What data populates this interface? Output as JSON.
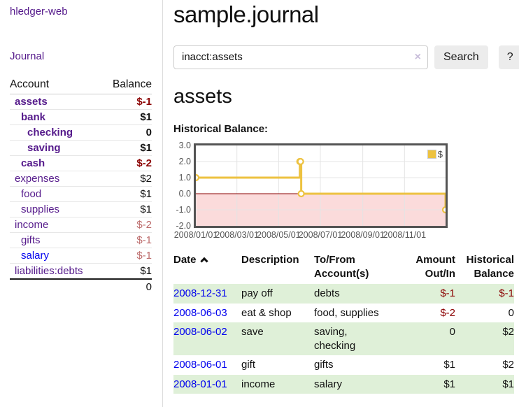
{
  "app": {
    "brand": "hledger-web",
    "nav_journal": "Journal"
  },
  "header": {
    "title": "sample.journal"
  },
  "search": {
    "value": "inacct:assets",
    "clear_icon": "×",
    "button": "Search",
    "help_button": "?"
  },
  "account_page": {
    "heading": "assets",
    "chart_label": "Historical Balance:"
  },
  "sidebar": {
    "columns": {
      "account": "Account",
      "balance": "Balance"
    },
    "accounts": [
      {
        "name": "assets",
        "level": 1,
        "bold": true,
        "link": "purple",
        "balance": "$-1",
        "balance_style": "neg-strong"
      },
      {
        "name": "bank",
        "level": 2,
        "bold": true,
        "link": "purple",
        "balance": "$1",
        "balance_style": "pos"
      },
      {
        "name": "checking",
        "level": 3,
        "bold": true,
        "link": "purple",
        "balance": "0",
        "balance_style": "pos"
      },
      {
        "name": "saving",
        "level": 3,
        "bold": true,
        "link": "purple",
        "balance": "$1",
        "balance_style": "pos"
      },
      {
        "name": "cash",
        "level": 2,
        "bold": true,
        "link": "purple",
        "balance": "$-2",
        "balance_style": "neg-strong"
      },
      {
        "name": "expenses",
        "level": 1,
        "bold": false,
        "link": "purple",
        "balance": "$2",
        "balance_style": "pos"
      },
      {
        "name": "food",
        "level": 2,
        "bold": false,
        "link": "purple",
        "balance": "$1",
        "balance_style": "pos"
      },
      {
        "name": "supplies",
        "level": 2,
        "bold": false,
        "link": "purple",
        "balance": "$1",
        "balance_style": "pos"
      },
      {
        "name": "income",
        "level": 1,
        "bold": false,
        "link": "purple",
        "balance": "$-2",
        "balance_style": "neg-soft"
      },
      {
        "name": "gifts",
        "level": 2,
        "bold": false,
        "link": "purple",
        "balance": "$-1",
        "balance_style": "neg-soft"
      },
      {
        "name": "salary",
        "level": 2,
        "bold": false,
        "link": "blue",
        "balance": "$-1",
        "balance_style": "neg-soft"
      },
      {
        "name": "liabilities:debts",
        "level": 1,
        "bold": false,
        "link": "purple",
        "balance": "$1",
        "balance_style": "pos"
      }
    ],
    "total": "0"
  },
  "chart_data": {
    "type": "line",
    "step": true,
    "title": "Historical Balance:",
    "series": [
      {
        "name": "$",
        "color": "#edc240",
        "points": [
          [
            "2008-01-01",
            1
          ],
          [
            "2008-06-01",
            2
          ],
          [
            "2008-06-02",
            2
          ],
          [
            "2008-06-03",
            0
          ],
          [
            "2008-12-31",
            -1
          ]
        ]
      }
    ],
    "x_range": [
      "2008-01-01",
      "2008-12-31"
    ],
    "x_ticks": [
      {
        "date": "2008-01-01",
        "label": "2008/01/01"
      },
      {
        "date": "2008-03-01",
        "label": "2008/03/01"
      },
      {
        "date": "2008-05-01",
        "label": "2008/05/01"
      },
      {
        "date": "2008-07-01",
        "label": "2008/07/01"
      },
      {
        "date": "2008-09-01",
        "label": "2008/09/01"
      },
      {
        "date": "2008-11-01",
        "label": "2008/11/01"
      }
    ],
    "y_ticks": [
      {
        "v": 3,
        "label": "3.0"
      },
      {
        "v": 2,
        "label": "2.0"
      },
      {
        "v": 1,
        "label": "1.0"
      },
      {
        "v": 0,
        "label": "0.0"
      },
      {
        "v": -1,
        "label": "-1.0"
      },
      {
        "v": -2,
        "label": "-2.0"
      }
    ],
    "ylim": [
      -2,
      3
    ],
    "legend": {
      "label": "$",
      "position": "top-right"
    },
    "grid": true,
    "negative_region": true
  },
  "register": {
    "columns": {
      "date": "Date",
      "description": "Description",
      "accounts": "To/From Account(s)",
      "amount": "Amount Out/In",
      "balance": "Historical Balance"
    },
    "sort_icon": "chevron-up",
    "rows": [
      {
        "date": "2008-12-31",
        "description": "pay off",
        "accounts": "debts",
        "amount": "$-1",
        "amount_neg": true,
        "balance": "$-1",
        "balance_neg": true,
        "striped": true
      },
      {
        "date": "2008-06-03",
        "description": "eat & shop",
        "accounts": "food, supplies",
        "amount": "$-2",
        "amount_neg": true,
        "balance": "0",
        "balance_neg": false,
        "striped": false
      },
      {
        "date": "2008-06-02",
        "description": "save",
        "accounts": "saving,\nchecking",
        "amount": "0",
        "amount_neg": false,
        "balance": "$2",
        "balance_neg": false,
        "striped": true
      },
      {
        "date": "2008-06-01",
        "description": "gift",
        "accounts": "gifts",
        "amount": "$1",
        "amount_neg": false,
        "balance": "$2",
        "balance_neg": false,
        "striped": false
      },
      {
        "date": "2008-01-01",
        "description": "income",
        "accounts": "salary",
        "amount": "$1",
        "amount_neg": false,
        "balance": "$1",
        "balance_neg": false,
        "striped": true
      }
    ]
  },
  "colors": {
    "link_visited_purple": "#551a8b",
    "link_blue": "#0000ee",
    "negative_strong": "#8b0000",
    "negative_soft": "#bc6b6b",
    "row_stripe_green": "#dff0d8",
    "series_gold": "#edc240",
    "chart_border": "#545454",
    "negative_region_pink": "#fbdbdb",
    "zero_line": "#8b0000",
    "grid_line": "#e4e4e4"
  }
}
